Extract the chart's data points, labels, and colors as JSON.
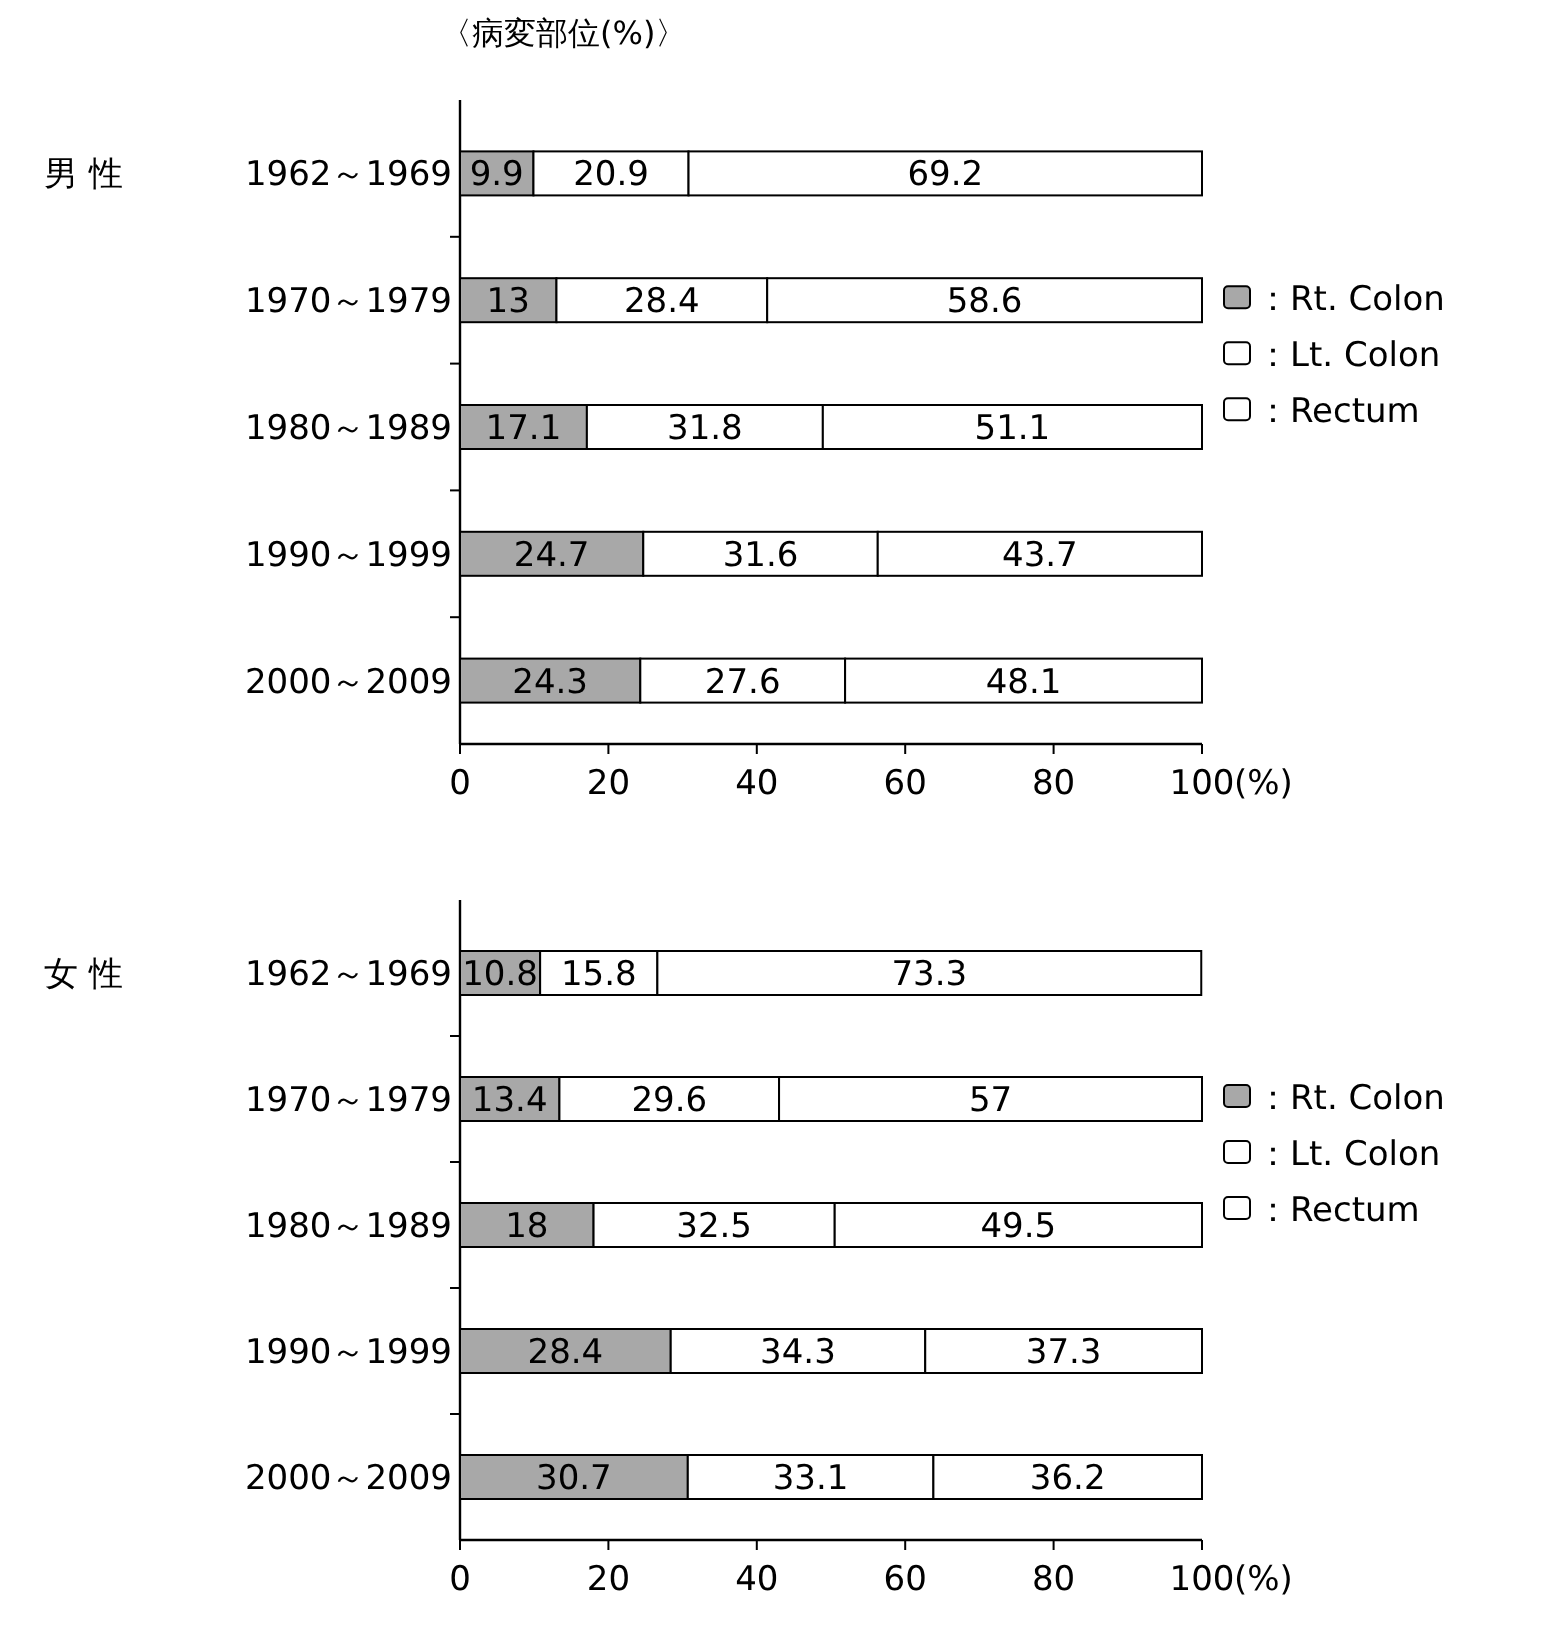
{
  "chart_data": [
    {
      "type": "bar",
      "orientation": "horizontal",
      "stacked": true,
      "data_labels": true,
      "legend": "right",
      "title": "男 性",
      "ylabel": "〈病変部位(%)〉",
      "xlabel": "(%)",
      "xlim": [
        0,
        100
      ],
      "xticks": [
        0,
        20,
        40,
        60,
        80,
        100
      ],
      "categories": [
        "1962～1969",
        "1970～1979",
        "1980～1989",
        "1990～1999",
        "2000～2009"
      ],
      "series": [
        {
          "name": "：Rt. Colon",
          "color": "#a8a8a8",
          "values": [
            9.9,
            13,
            17.1,
            24.7,
            24.3
          ]
        },
        {
          "name": "：Lt. Colon",
          "color": "#ffffff",
          "values": [
            20.9,
            28.4,
            31.8,
            31.6,
            27.6
          ]
        },
        {
          "name": "：Rectum",
          "color": "#ffffff",
          "values": [
            69.2,
            58.6,
            51.1,
            43.7,
            48.1
          ]
        }
      ]
    },
    {
      "type": "bar",
      "orientation": "horizontal",
      "stacked": true,
      "data_labels": true,
      "legend": "right",
      "title": "女 性",
      "xlabel": "(%)",
      "xlim": [
        0,
        100
      ],
      "xticks": [
        0,
        20,
        40,
        60,
        80,
        100
      ],
      "categories": [
        "1962～1969",
        "1970～1979",
        "1980～1989",
        "1990～1999",
        "2000～2009"
      ],
      "series": [
        {
          "name": "：Rt. Colon",
          "color": "#a8a8a8",
          "values": [
            10.8,
            13.4,
            18,
            28.4,
            30.7
          ]
        },
        {
          "name": "：Lt. Colon",
          "color": "#ffffff",
          "values": [
            15.8,
            29.6,
            32.5,
            34.3,
            33.1
          ]
        },
        {
          "name": "：Rectum",
          "color": "#ffffff",
          "values": [
            73.3,
            57,
            49.5,
            37.3,
            36.2
          ]
        }
      ]
    }
  ]
}
